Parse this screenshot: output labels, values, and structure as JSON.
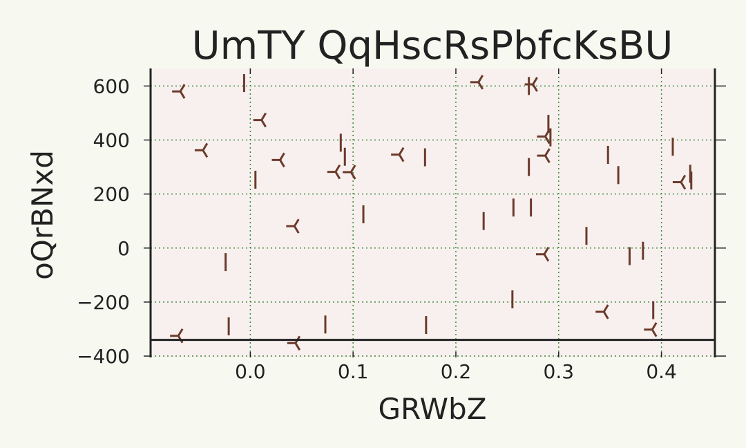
{
  "chart_data": {
    "type": "scatter",
    "title": "UmTY QqHscRsPbfcKsBU",
    "xlabel": "GRWbZ",
    "ylabel": "oQrBNxd",
    "xlim": [
      -0.097,
      0.452
    ],
    "ylim": [
      -405,
      665
    ],
    "xticks": [
      0.0,
      0.1,
      0.2,
      0.3,
      0.4
    ],
    "xtick_labels": [
      "0.0",
      "0.1",
      "0.2",
      "0.3",
      "0.4"
    ],
    "yticks": [
      -400,
      -200,
      0,
      200,
      400,
      600
    ],
    "ytick_labels": [
      "−400",
      "−200",
      "0",
      "200",
      "400",
      "600"
    ],
    "grid": true,
    "hline_y": -340,
    "colors": {
      "page_background": "#f7f9f1",
      "plot_background": "#f8f0ef",
      "marker": "#6b3a2a",
      "grid": "#3a8a3a",
      "axes": "#222222"
    },
    "series": [
      {
        "marker": "tri_left",
        "points": [
          [
            -0.068,
            580
          ],
          [
            -0.046,
            362
          ],
          [
            0.011,
            474
          ],
          [
            0.029,
            326
          ],
          [
            0.043,
            81
          ],
          [
            0.044,
            -352
          ],
          [
            -0.07,
            -325
          ],
          [
            0.083,
            282
          ],
          [
            0.098,
            281
          ],
          [
            0.145,
            346
          ],
          [
            0.222,
            614
          ],
          [
            0.275,
            606
          ],
          [
            0.287,
            413
          ],
          [
            0.287,
            342
          ],
          [
            0.286,
            -23
          ],
          [
            0.344,
            -236
          ],
          [
            0.391,
            -302
          ],
          [
            0.419,
            244
          ]
        ]
      },
      {
        "marker": "vline",
        "points": [
          [
            -0.006,
            611
          ],
          [
            0.005,
            253
          ],
          [
            -0.024,
            -52
          ],
          [
            -0.021,
            -290
          ],
          [
            0.088,
            390
          ],
          [
            0.092,
            338
          ],
          [
            0.11,
            125
          ],
          [
            0.073,
            -283
          ],
          [
            0.17,
            336
          ],
          [
            0.171,
            -285
          ],
          [
            0.227,
            100
          ],
          [
            0.256,
            150
          ],
          [
            0.271,
            600
          ],
          [
            0.271,
            300
          ],
          [
            0.273,
            150
          ],
          [
            0.255,
            -190
          ],
          [
            0.29,
            460
          ],
          [
            0.292,
            410
          ],
          [
            0.327,
            45
          ],
          [
            0.348,
            345
          ],
          [
            0.358,
            270
          ],
          [
            0.369,
            -30
          ],
          [
            0.382,
            -10
          ],
          [
            0.392,
            -230
          ],
          [
            0.411,
            375
          ],
          [
            0.428,
            275
          ],
          [
            0.429,
            250
          ]
        ]
      }
    ]
  }
}
